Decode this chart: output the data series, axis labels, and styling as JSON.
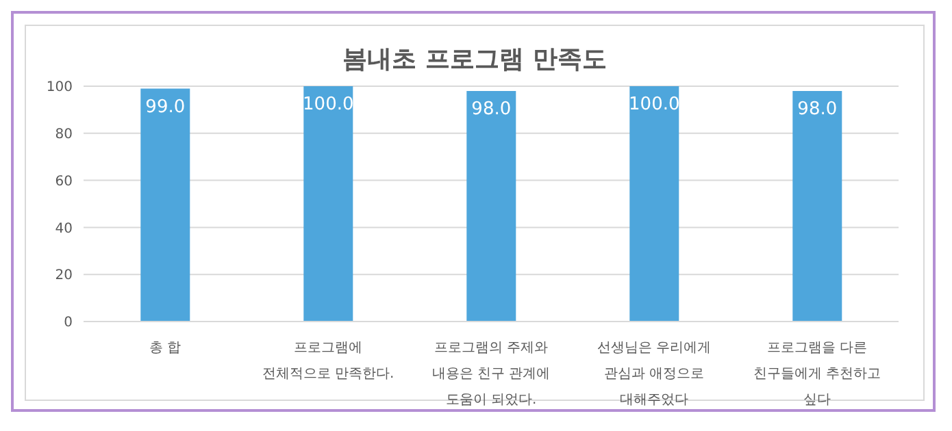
{
  "chart_data": {
    "type": "bar",
    "title": "봄내초 프로그램 만족도",
    "categories": [
      "총 합",
      "프로그램에 전체적으로 만족한다.",
      "프로그램의 주제와 내용은 친구 관계에 도움이 되었다.",
      "선생님은 우리에게 관심과 애정으로 대해주었다",
      "프로그램을 다른 친구들에게 추천하고 싶다"
    ],
    "values": [
      99,
      100,
      98,
      100,
      98
    ],
    "value_labels": [
      "99.0",
      "100.0",
      "98.0",
      "100.0",
      "98.0"
    ],
    "color": "#4ea6dc",
    "ylim": [
      0,
      100
    ],
    "yticks": [
      0,
      20,
      40,
      60,
      80,
      100
    ],
    "grid": "y"
  }
}
